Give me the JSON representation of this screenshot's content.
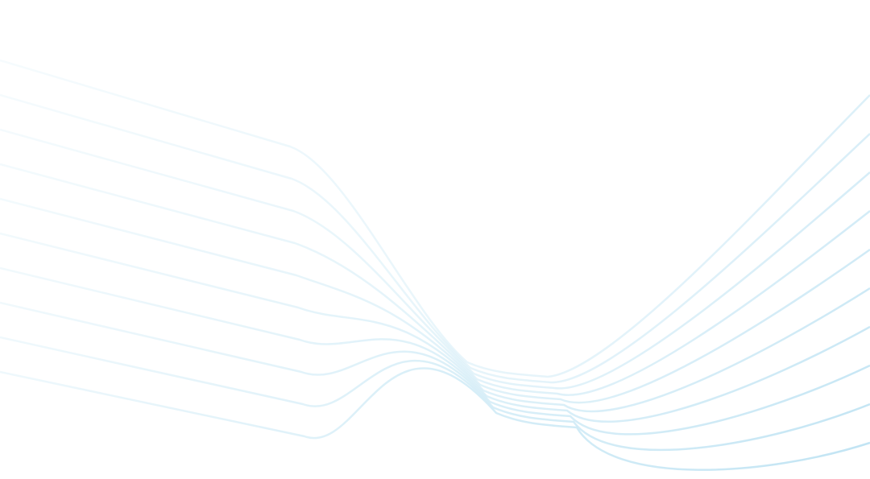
{
  "background": "#ffffff",
  "line_color": "#bfe3f3",
  "line_color_faint": "#eef8fc",
  "line_count": 10
}
